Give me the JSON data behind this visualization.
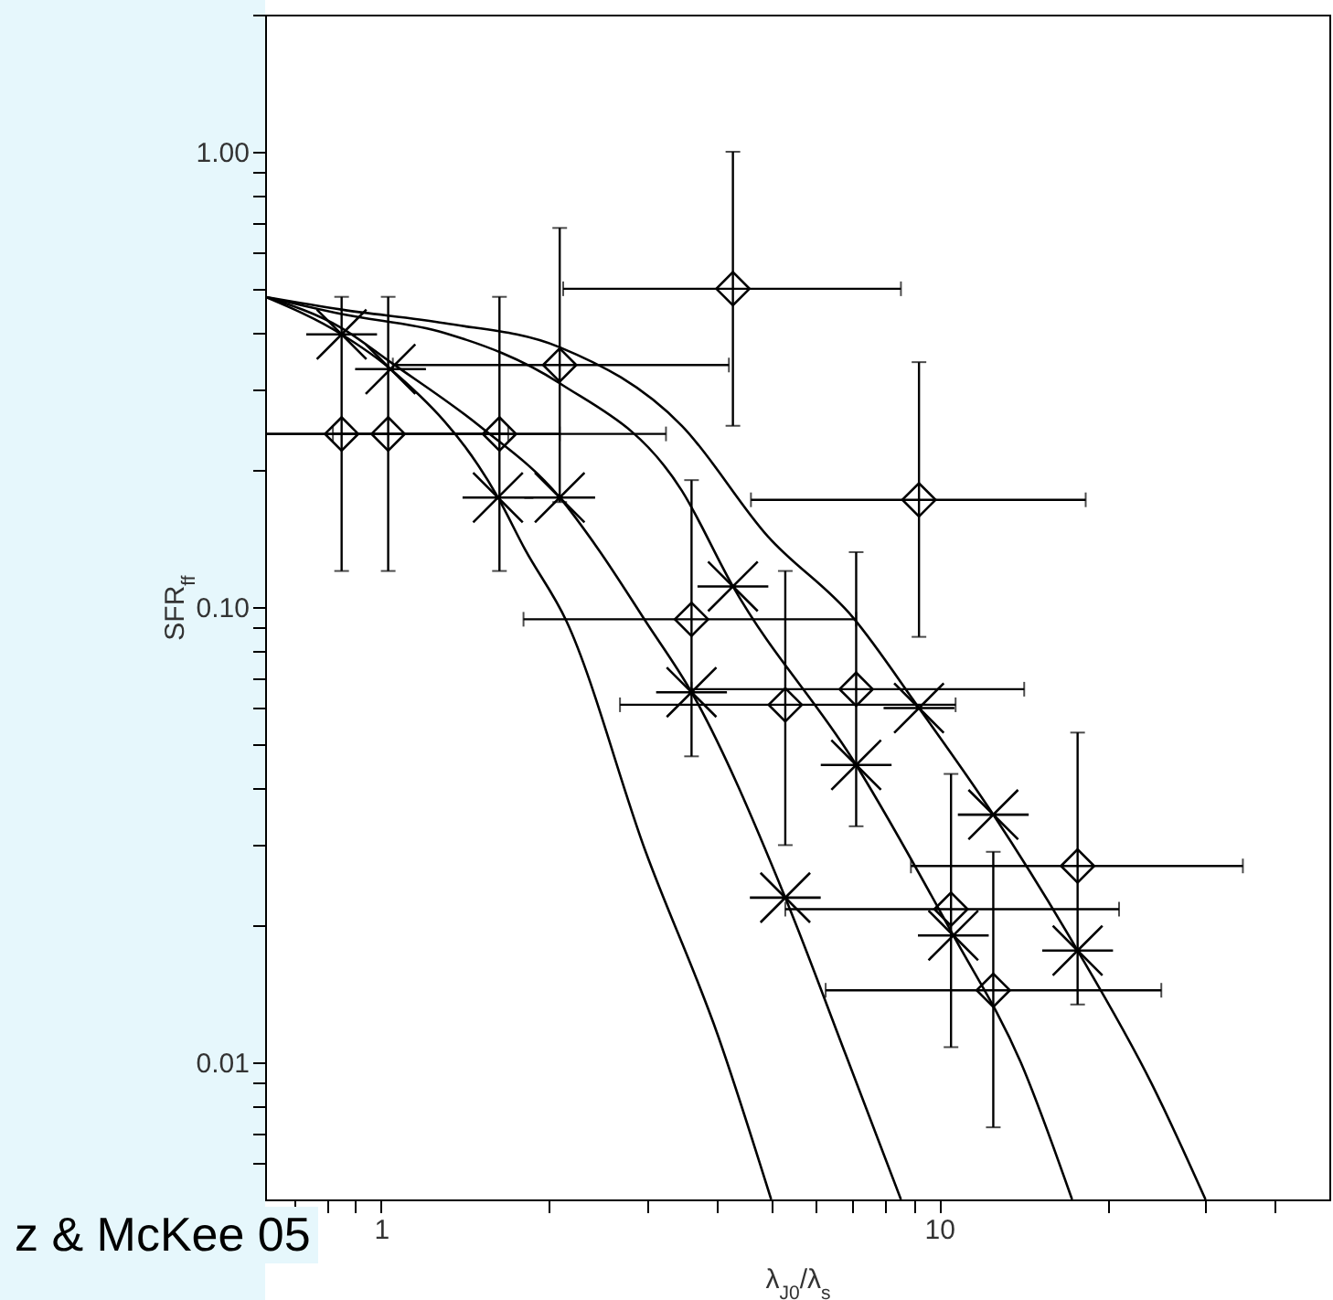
{
  "chart_data": {
    "type": "scatter",
    "xlabel": "λ$_{J0}$/λ$_{s}$",
    "ylabel": "SFR$_{ff}$",
    "log": "xy",
    "line_style": "solid",
    "xlim": [
      0.62,
      50
    ],
    "ylim": [
      0.005,
      2
    ],
    "xticks": [
      {
        "value": 0.7,
        "label": null
      },
      {
        "value": 0.8,
        "label": null
      },
      {
        "value": 0.9,
        "label": null
      },
      1,
      {
        "value": 2,
        "label": null
      },
      {
        "value": 3,
        "label": null
      },
      {
        "value": 4,
        "label": null
      },
      {
        "value": 5,
        "label": null
      },
      {
        "value": 6,
        "label": null
      },
      {
        "value": 7,
        "label": null
      },
      {
        "value": 8,
        "label": null
      },
      {
        "value": 9,
        "label": null
      },
      10,
      {
        "value": 20,
        "label": null
      },
      {
        "value": 30,
        "label": null
      },
      {
        "value": 40,
        "label": null
      }
    ],
    "yticks": [
      {
        "value": 0.006,
        "label": null
      },
      {
        "value": 0.007,
        "label": null
      },
      {
        "value": 0.008,
        "label": null
      },
      {
        "value": 0.009,
        "label": null
      },
      {
        "value": 0.01,
        "label": "0.01"
      },
      {
        "value": 0.02,
        "label": null
      },
      {
        "value": 0.03,
        "label": null
      },
      {
        "value": 0.04,
        "label": null
      },
      {
        "value": 0.05,
        "label": null
      },
      {
        "value": 0.06,
        "label": null
      },
      {
        "value": 0.07,
        "label": null
      },
      {
        "value": 0.08,
        "label": null
      },
      {
        "value": 0.09,
        "label": null
      },
      {
        "value": 0.1,
        "label": "0.10"
      },
      {
        "value": 0.2,
        "label": null
      },
      {
        "value": 0.3,
        "label": null
      },
      {
        "value": 0.4,
        "label": null
      },
      {
        "value": 0.5,
        "label": null
      },
      {
        "value": 0.6,
        "label": null
      },
      {
        "value": 0.7,
        "label": null
      },
      {
        "value": 0.8,
        "label": null
      },
      {
        "value": 0.9,
        "label": null
      },
      {
        "value": 1,
        "label": "1.00"
      },
      {
        "value": 2,
        "label": null
      }
    ],
    "annotations": [
      "z & McKee 05"
    ],
    "series": [
      {
        "marker": "diamond",
        "color": "#000000",
        "x": [
          0.85,
          1.03,
          1.63,
          2.09,
          4.27,
          9.2,
          3.6,
          5.3,
          7.1,
          10.5,
          12.5,
          17.7
        ],
        "values": [
          0.24,
          0.24,
          0.24,
          0.34,
          0.5,
          0.172,
          0.094,
          0.061,
          0.066,
          0.0217,
          0.0144,
          0.027
        ],
        "errors": [
          [
            0.12,
            0.48
          ],
          [
            0.12,
            0.48
          ],
          [
            0.12,
            0.48
          ],
          [
            0.17,
            0.68
          ],
          [
            0.25,
            1.0
          ],
          [
            0.086,
            0.345
          ],
          [
            0.047,
            0.19
          ],
          [
            0.03,
            0.12
          ],
          [
            0.033,
            0.132
          ],
          [
            0.0108,
            0.043
          ],
          [
            0.0072,
            0.029
          ],
          [
            0.0134,
            0.053
          ]
        ],
        "xerrors": [
          [
            0.62,
            1.69
          ],
          [
            0.62,
            2.09
          ],
          [
            0.82,
            3.24
          ],
          [
            1.05,
            4.2
          ],
          [
            2.12,
            8.54
          ],
          [
            4.6,
            18.3
          ],
          [
            1.8,
            7.1
          ],
          [
            2.68,
            10.7
          ],
          [
            3.6,
            14.2
          ],
          [
            5.3,
            21
          ],
          [
            6.26,
            25
          ],
          [
            8.9,
            35
          ]
        ]
      },
      {
        "marker": "cross",
        "color": "#000000",
        "x": [
          0.85,
          1.04,
          1.62,
          2.09,
          4.27,
          3.6,
          7.1,
          9.2,
          5.3,
          12.5,
          10.6,
          17.7
        ],
        "values": [
          0.397,
          0.333,
          0.174,
          0.174,
          0.111,
          0.065,
          0.045,
          0.06,
          0.023,
          0.035,
          0.019,
          0.0176
        ]
      },
      {
        "type": "line",
        "color": "#000000",
        "x": [
          0.62,
          0.85,
          1.04,
          1.62,
          1.81,
          2.15,
          2.98,
          4.02,
          5.0
        ],
        "values": [
          0.48,
          0.397,
          0.333,
          0.174,
          0.134,
          0.093,
          0.029,
          0.0114,
          0.005
        ]
      },
      {
        "type": "line",
        "color": "#000000",
        "x": [
          0.62,
          0.85,
          1.04,
          1.5,
          2.09,
          2.45,
          2.98,
          3.6,
          5.3,
          6.8,
          8.54
        ],
        "values": [
          0.48,
          0.41,
          0.345,
          0.25,
          0.174,
          0.134,
          0.093,
          0.065,
          0.023,
          0.0104,
          0.005
        ]
      },
      {
        "type": "line",
        "color": "#000000",
        "x": [
          0.62,
          0.85,
          1.3,
          2.09,
          3.46,
          4.27,
          7.1,
          10.6,
          14,
          17.3
        ],
        "values": [
          0.48,
          0.44,
          0.4,
          0.31,
          0.18,
          0.111,
          0.045,
          0.019,
          0.01,
          0.005
        ]
      },
      {
        "type": "line",
        "color": "#000000",
        "x": [
          0.62,
          0.85,
          1.3,
          2.09,
          3.46,
          4.93,
          7.0,
          9.2,
          12.5,
          17.7,
          24,
          30
        ],
        "values": [
          0.48,
          0.45,
          0.42,
          0.372,
          0.25,
          0.143,
          0.095,
          0.06,
          0.035,
          0.0176,
          0.009,
          0.005
        ]
      }
    ]
  }
}
